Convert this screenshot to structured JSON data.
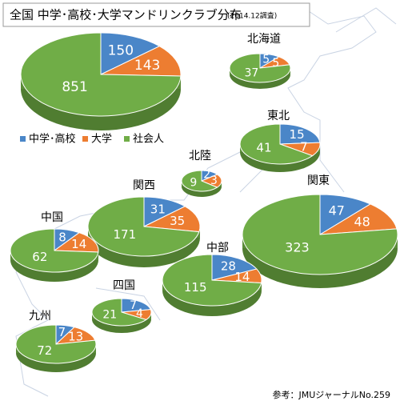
{
  "chart_data": {
    "type": "pie",
    "title": "全国 中学･高校･大学マンドリンクラブ分布",
    "subtitle": "(2014.12調査)",
    "series": [
      {
        "name": "中学･高校",
        "color": "#4a86c8"
      },
      {
        "name": "大学",
        "color": "#ed7d31"
      },
      {
        "name": "社会人",
        "color": "#70ad47"
      }
    ],
    "regions": [
      {
        "name": "全国",
        "values": [
          150,
          143,
          851
        ]
      },
      {
        "name": "北海道",
        "values": [
          5,
          5,
          37
        ]
      },
      {
        "name": "東北",
        "values": [
          15,
          7,
          41
        ]
      },
      {
        "name": "北陸",
        "values": [
          2,
          3,
          9
        ]
      },
      {
        "name": "関西",
        "values": [
          31,
          35,
          171
        ]
      },
      {
        "name": "関東",
        "values": [
          47,
          48,
          323
        ]
      },
      {
        "name": "中国",
        "values": [
          8,
          14,
          62
        ]
      },
      {
        "name": "中部",
        "values": [
          28,
          14,
          115
        ]
      },
      {
        "name": "四国",
        "values": [
          7,
          4,
          21
        ]
      },
      {
        "name": "九州",
        "values": [
          7,
          13,
          72
        ]
      }
    ],
    "source": "参考：JMUジャーナルNo.259"
  }
}
